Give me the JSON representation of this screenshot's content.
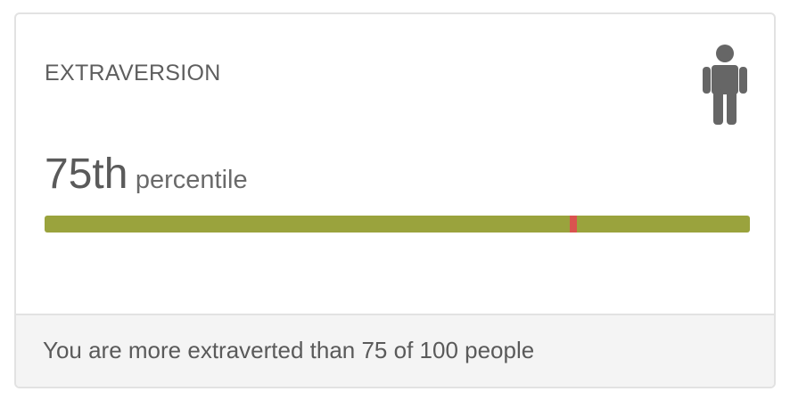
{
  "card": {
    "title": "EXTRAVERSION",
    "icon": "person-icon",
    "percentile_value": "75th",
    "percentile_unit": "percentile",
    "percentile_fraction": 0.75,
    "colors": {
      "bar": "#9aa33d",
      "marker": "#d9534f",
      "icon": "#666666"
    },
    "footer_text": "You are more extraverted than 75 of 100 people"
  }
}
